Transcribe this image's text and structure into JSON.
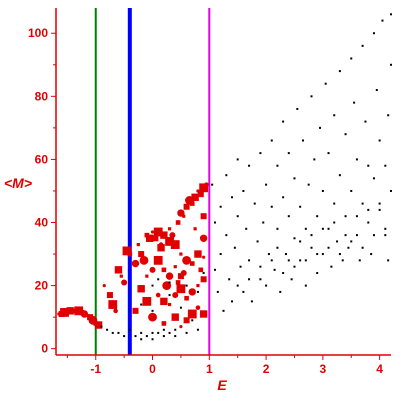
{
  "chart_data": {
    "type": "scatter",
    "title": "",
    "xlabel": "E",
    "ylabel": "<M>",
    "xlim": [
      -1.7,
      4.2
    ],
    "ylim": [
      -2,
      108
    ],
    "xticks": [
      {
        "value": -1,
        "label": "-1"
      },
      {
        "value": 0,
        "label": "0"
      },
      {
        "value": 1,
        "label": "1"
      },
      {
        "value": 2,
        "label": "2"
      },
      {
        "value": 3,
        "label": "3"
      },
      {
        "value": 4,
        "label": "4"
      }
    ],
    "yticks": [
      {
        "value": 0,
        "label": "0"
      },
      {
        "value": 20,
        "label": "20"
      },
      {
        "value": 40,
        "label": "40"
      },
      {
        "value": 60,
        "label": "60"
      },
      {
        "value": 80,
        "label": "80"
      },
      {
        "value": 100,
        "label": "100"
      }
    ],
    "grid": false,
    "axis_color": "#e00000",
    "vertical_lines": [
      {
        "x": -1.0,
        "color": "#008000",
        "style": "thin"
      },
      {
        "x": -0.4,
        "color": "#0000ff",
        "style": "thick"
      },
      {
        "x": 1.0,
        "color": "#e000e0",
        "style": "thin"
      }
    ],
    "series": [
      {
        "color": "#e00000",
        "marker": "square/circle",
        "points": [
          [
            -1.65,
            11
          ],
          [
            -1.6,
            11
          ],
          [
            -1.55,
            11.5
          ],
          [
            -1.5,
            12
          ],
          [
            -1.45,
            12
          ],
          [
            -1.4,
            12
          ],
          [
            -1.35,
            12
          ],
          [
            -1.3,
            12
          ],
          [
            -1.25,
            11.5
          ],
          [
            -1.2,
            11
          ],
          [
            -1.15,
            10.5
          ],
          [
            -1.1,
            10
          ],
          [
            -1.05,
            9
          ],
          [
            -1.0,
            8
          ],
          [
            -0.95,
            7.5
          ],
          [
            -0.85,
            20
          ],
          [
            -0.75,
            17
          ],
          [
            -0.7,
            14
          ],
          [
            -0.65,
            12
          ],
          [
            -0.6,
            25
          ],
          [
            -0.55,
            23
          ],
          [
            -0.5,
            21
          ],
          [
            -0.45,
            31
          ],
          [
            -0.4,
            30
          ],
          [
            -0.3,
            27
          ],
          [
            -0.25,
            33
          ],
          [
            -0.2,
            30
          ],
          [
            -0.15,
            28
          ],
          [
            -0.1,
            36
          ],
          [
            -0.05,
            35
          ],
          [
            0.0,
            37
          ],
          [
            0.05,
            35
          ],
          [
            0.1,
            37
          ],
          [
            0.15,
            33
          ],
          [
            0.2,
            36
          ],
          [
            0.3,
            38
          ],
          [
            0.35,
            36
          ],
          [
            0.4,
            33
          ],
          [
            0.45,
            40
          ],
          [
            0.5,
            43
          ],
          [
            0.55,
            42
          ],
          [
            0.6,
            45
          ],
          [
            0.65,
            47
          ],
          [
            0.7,
            46
          ],
          [
            0.75,
            48
          ],
          [
            0.8,
            50
          ],
          [
            0.85,
            49
          ],
          [
            0.9,
            51
          ],
          [
            0.95,
            52
          ],
          [
            -0.2,
            19
          ],
          [
            -0.1,
            23
          ],
          [
            0.0,
            25
          ],
          [
            0.1,
            28
          ],
          [
            0.2,
            25
          ],
          [
            0.3,
            23
          ],
          [
            0.4,
            26
          ],
          [
            0.5,
            23
          ],
          [
            0.6,
            28
          ],
          [
            0.7,
            27
          ],
          [
            0.8,
            30
          ],
          [
            0.9,
            29
          ],
          [
            -0.3,
            12
          ],
          [
            -0.1,
            15
          ],
          [
            0.1,
            17
          ],
          [
            0.2,
            15
          ],
          [
            0.3,
            14
          ],
          [
            0.4,
            17
          ],
          [
            0.5,
            19
          ],
          [
            0.6,
            16
          ],
          [
            0.7,
            18
          ],
          [
            0.8,
            20
          ],
          [
            0.9,
            22
          ],
          [
            0.0,
            10
          ],
          [
            0.2,
            8
          ],
          [
            0.4,
            10
          ],
          [
            0.5,
            7
          ],
          [
            0.6,
            9
          ],
          [
            0.7,
            11
          ],
          [
            0.8,
            13
          ],
          [
            0.9,
            11
          ],
          [
            0.5,
            30
          ],
          [
            0.55,
            24
          ],
          [
            0.3,
            34
          ],
          [
            0.85,
            25
          ],
          [
            0.9,
            35
          ],
          [
            0.75,
            38
          ],
          [
            0.9,
            42
          ],
          [
            0.25,
            20
          ],
          [
            0.45,
            21
          ],
          [
            0.15,
            32
          ]
        ]
      },
      {
        "color": "#000000",
        "marker": "dot",
        "points": [
          [
            -0.9,
            7
          ],
          [
            -0.8,
            6
          ],
          [
            -0.7,
            5
          ],
          [
            -0.6,
            5
          ],
          [
            -0.5,
            4
          ],
          [
            -0.3,
            4
          ],
          [
            -0.2,
            3
          ],
          [
            -0.1,
            4
          ],
          [
            0.0,
            5
          ],
          [
            0.1,
            5
          ],
          [
            0.2,
            6
          ],
          [
            0.3,
            5
          ],
          [
            0.4,
            6
          ],
          [
            -0.4,
            6
          ],
          [
            -0.2,
            5
          ],
          [
            0.0,
            3
          ],
          [
            0.2,
            4
          ],
          [
            0.4,
            4
          ],
          [
            0.6,
            5
          ],
          [
            0.8,
            6
          ],
          [
            0.0,
            20
          ],
          [
            0.1,
            22
          ],
          [
            0.3,
            21
          ],
          [
            0.6,
            20
          ],
          [
            0.8,
            18
          ],
          [
            0.9,
            24
          ],
          [
            -0.2,
            14
          ],
          [
            0.0,
            12
          ],
          [
            0.3,
            17
          ],
          [
            0.5,
            13
          ],
          [
            0.7,
            9
          ],
          [
            1.05,
            52
          ],
          [
            1.1,
            40
          ],
          [
            1.1,
            25
          ],
          [
            1.15,
            18
          ],
          [
            1.2,
            45
          ],
          [
            1.2,
            30
          ],
          [
            1.25,
            12
          ],
          [
            1.3,
            55
          ],
          [
            1.3,
            36
          ],
          [
            1.35,
            22
          ],
          [
            1.4,
            48
          ],
          [
            1.4,
            15
          ],
          [
            1.45,
            32
          ],
          [
            1.5,
            60
          ],
          [
            1.5,
            42
          ],
          [
            1.55,
            26
          ],
          [
            1.6,
            18
          ],
          [
            1.6,
            50
          ],
          [
            1.65,
            38
          ],
          [
            1.7,
            58
          ],
          [
            1.7,
            28
          ],
          [
            1.75,
            15
          ],
          [
            1.8,
            46
          ],
          [
            1.85,
            34
          ],
          [
            1.9,
            62
          ],
          [
            1.9,
            22
          ],
          [
            1.95,
            40
          ],
          [
            2.0,
            20
          ],
          [
            2.0,
            52
          ],
          [
            2.05,
            30
          ],
          [
            2.1,
            45
          ],
          [
            2.1,
            66
          ],
          [
            2.15,
            25
          ],
          [
            2.2,
            38
          ],
          [
            2.2,
            58
          ],
          [
            2.25,
            18
          ],
          [
            2.3,
            48
          ],
          [
            2.3,
            72
          ],
          [
            2.35,
            30
          ],
          [
            2.4,
            42
          ],
          [
            2.4,
            62
          ],
          [
            2.45,
            22
          ],
          [
            2.5,
            54
          ],
          [
            2.5,
            35
          ],
          [
            2.55,
            76
          ],
          [
            2.6,
            28
          ],
          [
            2.6,
            45
          ],
          [
            2.65,
            66
          ],
          [
            2.7,
            38
          ],
          [
            2.7,
            20
          ],
          [
            2.75,
            52
          ],
          [
            2.8,
            80
          ],
          [
            2.8,
            32
          ],
          [
            2.85,
            60
          ],
          [
            2.9,
            42
          ],
          [
            2.9,
            24
          ],
          [
            2.95,
            70
          ],
          [
            3.0,
            50
          ],
          [
            3.0,
            30
          ],
          [
            3.05,
            84
          ],
          [
            3.1,
            38
          ],
          [
            3.1,
            62
          ],
          [
            3.15,
            26
          ],
          [
            3.2,
            46
          ],
          [
            3.2,
            74
          ],
          [
            3.25,
            34
          ],
          [
            3.3,
            88
          ],
          [
            3.3,
            55
          ],
          [
            3.35,
            28
          ],
          [
            3.4,
            42
          ],
          [
            3.4,
            68
          ],
          [
            3.45,
            32
          ],
          [
            3.5,
            92
          ],
          [
            3.5,
            50
          ],
          [
            3.55,
            78
          ],
          [
            3.6,
            36
          ],
          [
            3.6,
            60
          ],
          [
            3.65,
            28
          ],
          [
            3.7,
            96
          ],
          [
            3.7,
            46
          ],
          [
            3.75,
            72
          ],
          [
            3.8,
            40
          ],
          [
            3.8,
            58
          ],
          [
            3.85,
            30
          ],
          [
            3.9,
            100
          ],
          [
            3.9,
            54
          ],
          [
            3.95,
            82
          ],
          [
            4.0,
            44
          ],
          [
            4.0,
            66
          ],
          [
            4.05,
            104
          ],
          [
            4.1,
            36
          ],
          [
            4.1,
            58
          ],
          [
            4.15,
            74
          ],
          [
            4.15,
            28
          ],
          [
            4.2,
            50
          ],
          [
            4.2,
            106
          ],
          [
            4.2,
            90
          ],
          [
            2.2,
            32
          ],
          [
            2.4,
            28
          ],
          [
            2.6,
            34
          ],
          [
            2.8,
            36
          ],
          [
            3.0,
            38
          ],
          [
            3.2,
            40
          ],
          [
            3.4,
            36
          ],
          [
            3.6,
            42
          ],
          [
            3.8,
            44
          ],
          [
            4.0,
            46
          ],
          [
            1.5,
            20
          ],
          [
            1.7,
            22
          ],
          [
            1.9,
            26
          ],
          [
            2.1,
            28
          ],
          [
            2.3,
            24
          ],
          [
            2.5,
            26
          ],
          [
            2.7,
            28
          ],
          [
            2.9,
            30
          ],
          [
            3.1,
            32
          ],
          [
            3.3,
            30
          ],
          [
            3.5,
            34
          ],
          [
            3.7,
            32
          ],
          [
            3.9,
            36
          ],
          [
            4.1,
            38
          ]
        ]
      }
    ]
  }
}
